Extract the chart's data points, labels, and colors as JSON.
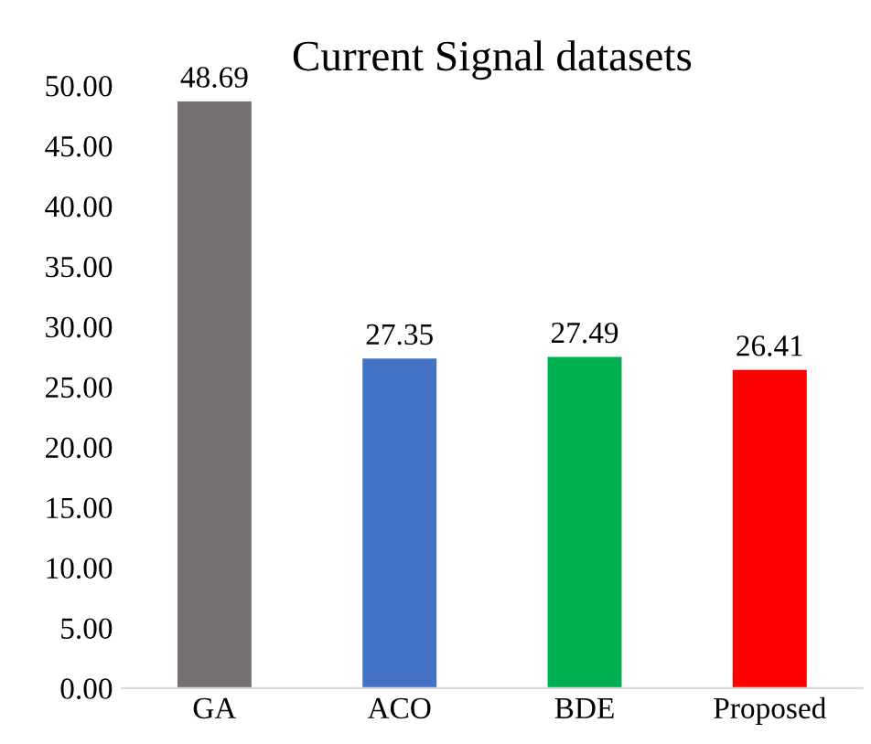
{
  "chart_data": {
    "type": "bar",
    "title": "Current Signal datasets",
    "categories": [
      "GA",
      "ACO",
      "BDE",
      "Proposed"
    ],
    "values": [
      48.69,
      27.35,
      27.49,
      26.41
    ],
    "colors": [
      "#767171",
      "#4472c4",
      "#00b050",
      "#ff0000"
    ],
    "data_labels": true,
    "ylim": [
      0,
      50
    ],
    "yticks": [
      {
        "value": 0,
        "label": "0.00"
      },
      {
        "value": 5,
        "label": "5.00"
      },
      {
        "value": 10,
        "label": "10.00"
      },
      {
        "value": 15,
        "label": "15.00"
      },
      {
        "value": 20,
        "label": "20.00"
      },
      {
        "value": 25,
        "label": "25.00"
      },
      {
        "value": 30,
        "label": "30.00"
      },
      {
        "value": 35,
        "label": "35.00"
      },
      {
        "value": 40,
        "label": "40.00"
      },
      {
        "value": 45,
        "label": "45.00"
      },
      {
        "value": 50,
        "label": "50.00"
      }
    ],
    "grid": false,
    "legend": false
  }
}
